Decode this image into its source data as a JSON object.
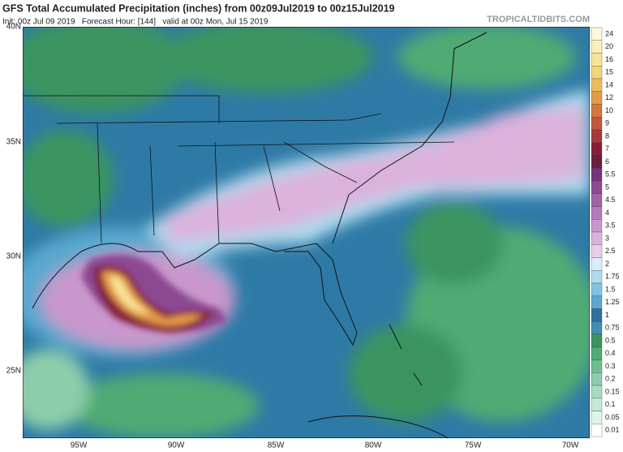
{
  "header": {
    "title": "GFS Total Accumulated Precipitation (inches) from 00z09Jul2019 to 00z15Jul2019",
    "info": "Init: 00z Jul 09 2019   Forecast Hour: [144]   valid at 00z Mon, Jul 15 2019",
    "watermark": "TROPICALTIDBITS.COM"
  },
  "map": {
    "lat_labels": [
      "40N",
      "35N",
      "30N",
      "25N"
    ],
    "lon_labels": [
      "95W",
      "90W",
      "85W",
      "80W",
      "75W",
      "70W"
    ]
  },
  "legend": {
    "levels": [
      {
        "label": "24",
        "color": "#fdf8d8"
      },
      {
        "label": "20",
        "color": "#fbefb8"
      },
      {
        "label": "16",
        "color": "#f8e496"
      },
      {
        "label": "15",
        "color": "#f4d478"
      },
      {
        "label": "14",
        "color": "#eebb5c"
      },
      {
        "label": "12",
        "color": "#e49a47"
      },
      {
        "label": "10",
        "color": "#d6773c"
      },
      {
        "label": "9",
        "color": "#c2573a"
      },
      {
        "label": "8",
        "color": "#a63a3a"
      },
      {
        "label": "7",
        "color": "#861f3a"
      },
      {
        "label": "6",
        "color": "#6a1f3c"
      },
      {
        "label": "5.5",
        "color": "#74357c"
      },
      {
        "label": "5",
        "color": "#8c4a92"
      },
      {
        "label": "4.5",
        "color": "#a163a6"
      },
      {
        "label": "4",
        "color": "#b57bb9"
      },
      {
        "label": "3.5",
        "color": "#c997cc"
      },
      {
        "label": "3",
        "color": "#dbb2dc"
      },
      {
        "label": "2.5",
        "color": "#e8cde8"
      },
      {
        "label": "2",
        "color": "#d8eff8"
      },
      {
        "label": "1.75",
        "color": "#b0dbef"
      },
      {
        "label": "1.5",
        "color": "#82c2e0"
      },
      {
        "label": "1.25",
        "color": "#5aa8cf"
      },
      {
        "label": "1",
        "color": "#2e6fa0"
      },
      {
        "label": "0.75",
        "color": "#3f8eb0"
      },
      {
        "label": "0.5",
        "color": "#3a9460"
      },
      {
        "label": "0.4",
        "color": "#4faa73"
      },
      {
        "label": "0.3",
        "color": "#6ebf8f"
      },
      {
        "label": "0.2",
        "color": "#8ccdab"
      },
      {
        "label": "0.15",
        "color": "#a6dbbf"
      },
      {
        "label": "0.1",
        "color": "#c5e8d3"
      },
      {
        "label": "0.05",
        "color": "#e0f5e8"
      },
      {
        "label": "0.01",
        "color": "#ffffff"
      }
    ]
  }
}
